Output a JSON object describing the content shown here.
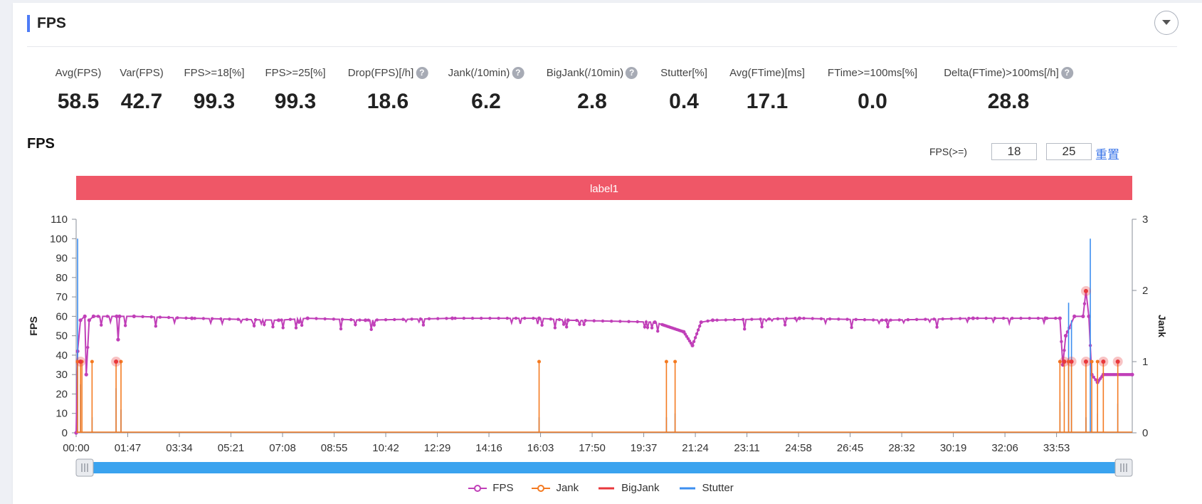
{
  "section": {
    "title": "FPS"
  },
  "metrics": [
    {
      "label": "Avg(FPS)",
      "value": "58.5",
      "help": false
    },
    {
      "label": "Var(FPS)",
      "value": "42.7",
      "help": false
    },
    {
      "label": "FPS>=18[%]",
      "value": "99.3",
      "help": false
    },
    {
      "label": "FPS>=25[%]",
      "value": "99.3",
      "help": false
    },
    {
      "label": "Drop(FPS)[/h]",
      "value": "18.6",
      "help": true
    },
    {
      "label": "Jank(/10min)",
      "value": "6.2",
      "help": true
    },
    {
      "label": "BigJank(/10min)",
      "value": "2.8",
      "help": true
    },
    {
      "label": "Stutter[%]",
      "value": "0.4",
      "help": false
    },
    {
      "label": "Avg(FTime)[ms]",
      "value": "17.1",
      "help": false
    },
    {
      "label": "FTime>=100ms[%]",
      "value": "0.0",
      "help": false
    },
    {
      "label": "Delta(FTime)>100ms[/h]",
      "value": "28.8",
      "help": true
    }
  ],
  "chart_title": "FPS",
  "threshold": {
    "label": "FPS(>=)",
    "value1": "18",
    "value2": "25",
    "reset": "重置"
  },
  "banner_label": "label1",
  "legend": [
    "FPS",
    "Jank",
    "BigJank",
    "Stutter"
  ],
  "colors": {
    "accent": "#4e7cf6",
    "banner": "#ef5767",
    "fps": "#c03fb8",
    "jank": "#f47b22",
    "bigjank": "#e8383d",
    "stutter": "#3d8ff0",
    "slider": "#3aa3ef"
  },
  "chart_data": {
    "type": "line",
    "title": "",
    "xlabel": "",
    "ylabel": "FPS",
    "y2label": "Jank",
    "ylim": [
      0,
      110
    ],
    "y2lim": [
      0,
      3
    ],
    "yticks": [
      0,
      10,
      20,
      30,
      40,
      50,
      60,
      70,
      80,
      90,
      100,
      110
    ],
    "y2ticks": [
      0,
      1,
      2,
      3
    ],
    "xlim_minutes": [
      0,
      36.5
    ],
    "xticks": [
      "00:00",
      "01:47",
      "03:34",
      "05:21",
      "07:08",
      "08:55",
      "10:42",
      "12:29",
      "14:16",
      "16:03",
      "17:50",
      "19:37",
      "21:24",
      "23:11",
      "24:58",
      "26:45",
      "28:32",
      "30:19",
      "32:06",
      "33:53"
    ],
    "grid": false,
    "legend_position": "bottom",
    "series": [
      {
        "name": "FPS",
        "axis": "left",
        "baseline": 60,
        "values": [
          [
            0,
            0
          ],
          [
            0.05,
            42
          ],
          [
            0.15,
            58
          ],
          [
            0.3,
            60
          ],
          [
            0.35,
            30
          ],
          [
            0.45,
            58
          ],
          [
            0.6,
            60
          ],
          [
            1.4,
            60
          ],
          [
            1.45,
            48
          ],
          [
            1.5,
            60
          ],
          [
            2.0,
            60
          ],
          [
            4.0,
            59
          ],
          [
            7.0,
            58
          ],
          [
            8.0,
            59
          ],
          [
            10.0,
            58
          ],
          [
            13.0,
            59
          ],
          [
            16.0,
            59
          ],
          [
            17.0,
            58
          ],
          [
            20.0,
            57
          ],
          [
            21.0,
            52
          ],
          [
            21.3,
            45
          ],
          [
            21.6,
            57
          ],
          [
            22.0,
            58
          ],
          [
            25.0,
            59
          ],
          [
            28.0,
            58
          ],
          [
            31.0,
            59
          ],
          [
            33.5,
            59
          ],
          [
            34.0,
            59
          ],
          [
            34.1,
            35
          ],
          [
            34.2,
            50
          ],
          [
            34.5,
            60
          ],
          [
            34.8,
            60
          ],
          [
            34.9,
            73
          ],
          [
            35.0,
            60
          ],
          [
            35.1,
            30
          ],
          [
            35.3,
            26
          ],
          [
            35.5,
            30
          ],
          [
            36.5,
            30
          ]
        ]
      },
      {
        "name": "Jank",
        "axis": "right",
        "events_minutes": [
          0.05,
          0.15,
          0.2,
          0.55,
          1.38,
          1.55,
          16.0,
          20.4,
          20.7,
          34.0,
          34.15,
          34.3,
          34.4,
          34.9,
          35.1,
          35.3,
          35.5,
          36.0
        ]
      },
      {
        "name": "BigJank",
        "axis": "right",
        "events_minutes": [
          0.15,
          1.38,
          34.15,
          34.4,
          34.9,
          35.5,
          36.0
        ],
        "peak_marker": {
          "time_minutes": 34.9,
          "fps": 73
        }
      },
      {
        "name": "Stutter",
        "axis": "left",
        "peaks": [
          [
            0.05,
            100
          ],
          [
            0.15,
            25
          ],
          [
            0.55,
            8
          ],
          [
            1.38,
            23
          ],
          [
            1.55,
            12
          ],
          [
            16.0,
            8
          ],
          [
            20.4,
            8
          ],
          [
            20.7,
            10
          ],
          [
            34.0,
            16
          ],
          [
            34.3,
            67
          ],
          [
            34.4,
            58
          ],
          [
            34.9,
            8
          ],
          [
            35.05,
            100
          ],
          [
            35.3,
            10
          ],
          [
            36.0,
            15
          ]
        ]
      }
    ]
  }
}
